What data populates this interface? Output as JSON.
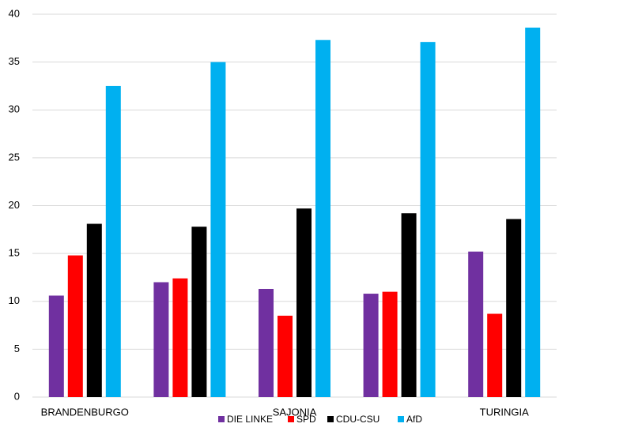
{
  "chart_data": {
    "type": "bar",
    "categories": [
      "BRANDENBURGO",
      null,
      "SAJONIA",
      null,
      "TURINGIA"
    ],
    "series": [
      {
        "name": "DIE LINKE",
        "color": "#7030a0",
        "values": [
          10.6,
          12.0,
          11.3,
          10.8,
          15.2
        ]
      },
      {
        "name": "SPD",
        "color": "#ff0000",
        "values": [
          14.8,
          12.4,
          8.5,
          11.0,
          8.7
        ]
      },
      {
        "name": "CDU-CSU",
        "color": "#000000",
        "values": [
          18.1,
          17.8,
          19.7,
          19.2,
          18.6
        ]
      },
      {
        "name": "AfD",
        "color": "#00b0f0",
        "values": [
          32.5,
          35.0,
          37.3,
          37.1,
          38.6
        ]
      }
    ],
    "ylim": [
      0,
      40
    ],
    "yticks": [
      0,
      5,
      10,
      15,
      20,
      25,
      30,
      35,
      40
    ],
    "grid": true,
    "legend": "bottom"
  }
}
